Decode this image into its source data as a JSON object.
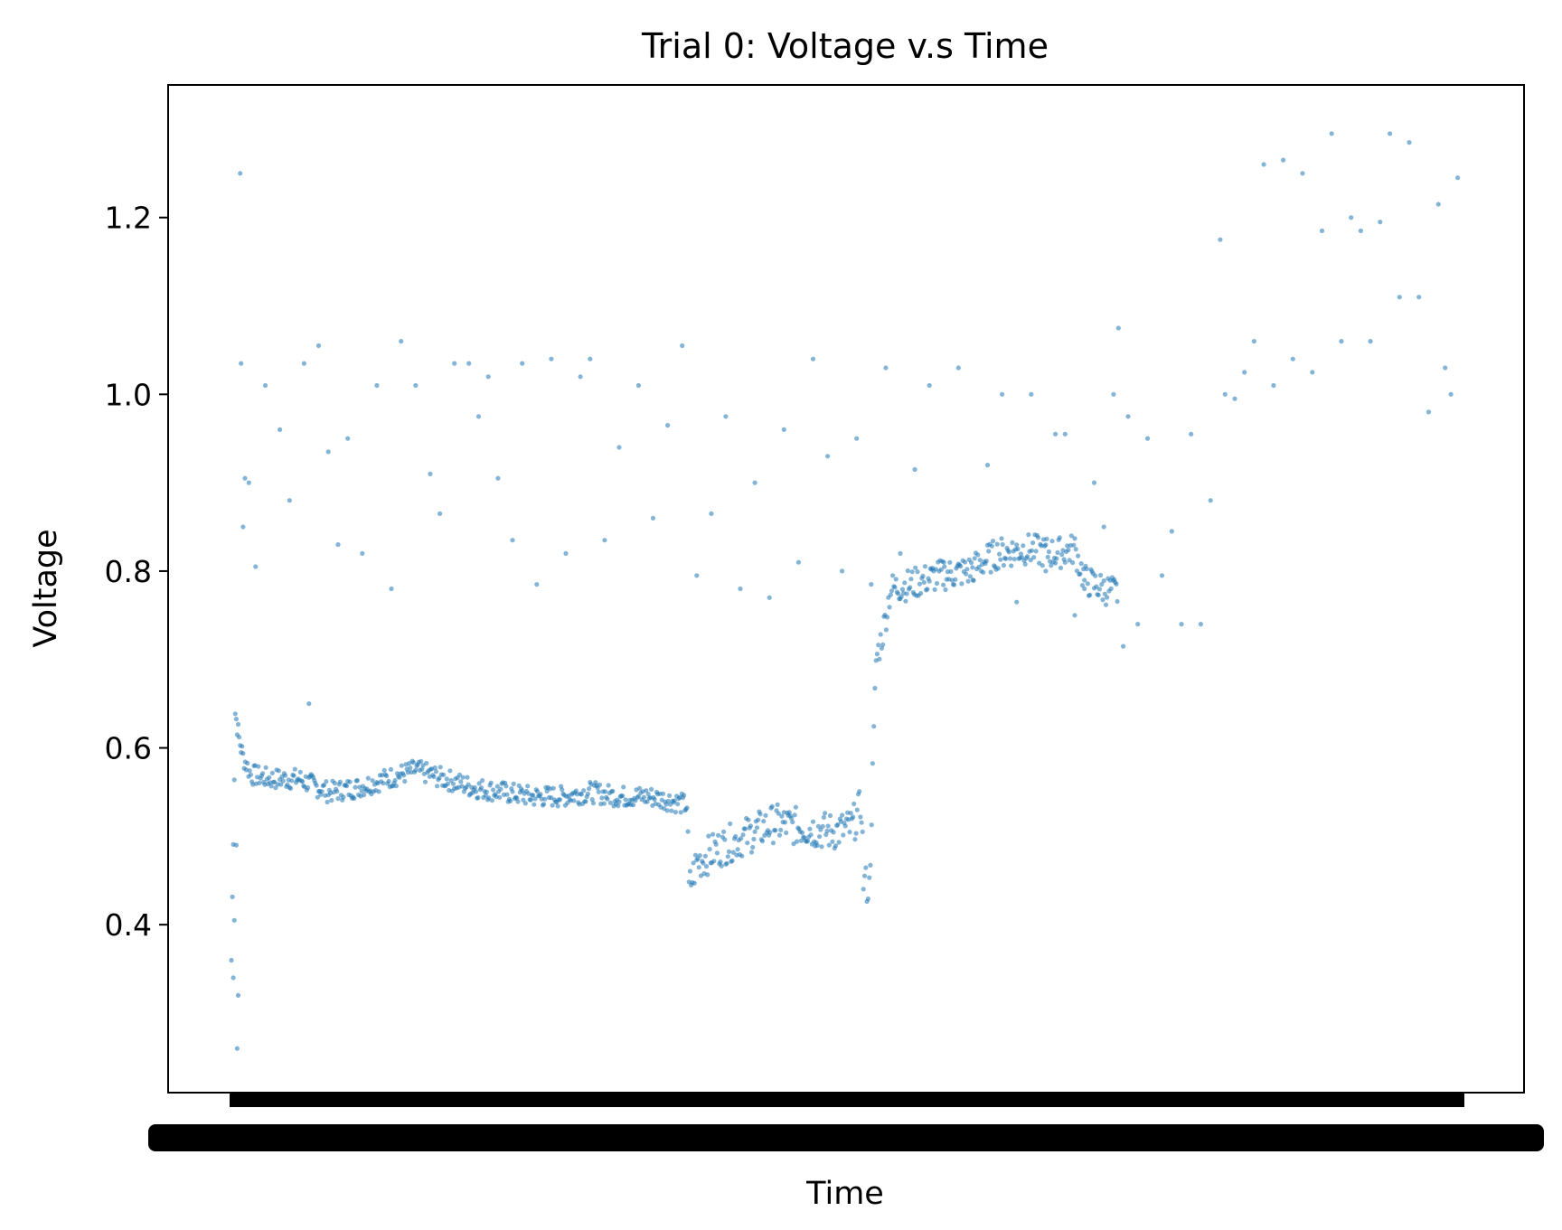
{
  "chart_data": {
    "type": "scatter",
    "title": "Trial 0: Voltage v.s Time",
    "xlabel": "Time",
    "ylabel": "Voltage",
    "ylim": [
      0.21,
      1.35
    ],
    "y_ticks": [
      0.4,
      0.6,
      0.8,
      1.0,
      1.2
    ],
    "y_tick_labels": [
      "0.4",
      "0.6",
      "0.8",
      "1.0",
      "1.2"
    ],
    "x_ticks": "unreadable (overlapping labels)",
    "grid": false,
    "legend": "none",
    "marker_color": "#1f77b4",
    "series": [
      {
        "main_track": [
          [
            0,
            0.36
          ],
          [
            4,
            0.64
          ],
          [
            8,
            0.61
          ],
          [
            12,
            0.59
          ],
          [
            20,
            0.57
          ],
          [
            40,
            0.565
          ],
          [
            70,
            0.565
          ],
          [
            100,
            0.55
          ],
          [
            130,
            0.555
          ],
          [
            160,
            0.565
          ],
          [
            190,
            0.575
          ],
          [
            220,
            0.565
          ],
          [
            250,
            0.555
          ],
          [
            280,
            0.55
          ],
          [
            310,
            0.545
          ],
          [
            340,
            0.545
          ],
          [
            370,
            0.55
          ],
          [
            400,
            0.545
          ],
          [
            430,
            0.545
          ],
          [
            455,
            0.54
          ],
          [
            470,
            0.535
          ],
          [
            472,
            0.44
          ],
          [
            480,
            0.47
          ],
          [
            500,
            0.485
          ],
          [
            530,
            0.5
          ],
          [
            560,
            0.515
          ],
          [
            590,
            0.51
          ],
          [
            620,
            0.505
          ],
          [
            640,
            0.51
          ],
          [
            650,
            0.535
          ],
          [
            652,
            0.45
          ],
          [
            658,
            0.44
          ],
          [
            665,
            0.7
          ],
          [
            672,
            0.73
          ],
          [
            680,
            0.78
          ],
          [
            700,
            0.785
          ],
          [
            730,
            0.795
          ],
          [
            760,
            0.8
          ],
          [
            790,
            0.82
          ],
          [
            820,
            0.825
          ],
          [
            850,
            0.82
          ],
          [
            870,
            0.825
          ],
          [
            880,
            0.79
          ],
          [
            900,
            0.78
          ],
          [
            915,
            0.775
          ]
        ],
        "scattered": [
          [
            2,
            0.34
          ],
          [
            3,
            0.405
          ],
          [
            5,
            0.49
          ],
          [
            6,
            0.26
          ],
          [
            7,
            0.32
          ],
          [
            9,
            1.25
          ],
          [
            10,
            1.035
          ],
          [
            12,
            0.85
          ],
          [
            14,
            0.905
          ],
          [
            18,
            0.9
          ],
          [
            25,
            0.805
          ],
          [
            35,
            1.01
          ],
          [
            50,
            0.96
          ],
          [
            60,
            0.88
          ],
          [
            75,
            1.035
          ],
          [
            80,
            0.65
          ],
          [
            90,
            1.055
          ],
          [
            100,
            0.935
          ],
          [
            110,
            0.83
          ],
          [
            120,
            0.95
          ],
          [
            135,
            0.82
          ],
          [
            150,
            1.01
          ],
          [
            165,
            0.78
          ],
          [
            175,
            1.06
          ],
          [
            190,
            1.01
          ],
          [
            205,
            0.91
          ],
          [
            215,
            0.865
          ],
          [
            230,
            1.035
          ],
          [
            245,
            1.035
          ],
          [
            255,
            0.975
          ],
          [
            265,
            1.02
          ],
          [
            275,
            0.905
          ],
          [
            290,
            0.835
          ],
          [
            300,
            1.035
          ],
          [
            315,
            0.785
          ],
          [
            330,
            1.04
          ],
          [
            345,
            0.82
          ],
          [
            360,
            1.02
          ],
          [
            370,
            1.04
          ],
          [
            385,
            0.835
          ],
          [
            400,
            0.94
          ],
          [
            420,
            1.01
          ],
          [
            435,
            0.86
          ],
          [
            450,
            0.965
          ],
          [
            465,
            1.055
          ],
          [
            480,
            0.795
          ],
          [
            495,
            0.865
          ],
          [
            510,
            0.975
          ],
          [
            525,
            0.78
          ],
          [
            540,
            0.9
          ],
          [
            555,
            0.77
          ],
          [
            570,
            0.96
          ],
          [
            585,
            0.81
          ],
          [
            600,
            1.04
          ],
          [
            615,
            0.93
          ],
          [
            630,
            0.8
          ],
          [
            645,
            0.95
          ],
          [
            660,
            0.785
          ],
          [
            675,
            1.03
          ],
          [
            690,
            0.82
          ],
          [
            705,
            0.915
          ],
          [
            720,
            1.01
          ],
          [
            735,
            0.81
          ],
          [
            750,
            1.03
          ],
          [
            765,
            0.79
          ],
          [
            780,
            0.92
          ],
          [
            795,
            1.0
          ],
          [
            810,
            0.765
          ],
          [
            825,
            1.0
          ],
          [
            840,
            0.8
          ],
          [
            850,
            0.955
          ],
          [
            860,
            0.955
          ],
          [
            870,
            0.75
          ],
          [
            880,
            0.78
          ],
          [
            890,
            0.9
          ],
          [
            900,
            0.85
          ],
          [
            910,
            1.0
          ],
          [
            915,
            1.075
          ],
          [
            920,
            0.715
          ],
          [
            925,
            0.975
          ],
          [
            935,
            0.74
          ],
          [
            945,
            0.95
          ],
          [
            960,
            0.795
          ],
          [
            970,
            0.845
          ],
          [
            980,
            0.74
          ],
          [
            990,
            0.955
          ],
          [
            1000,
            0.74
          ],
          [
            1010,
            0.88
          ],
          [
            1020,
            1.175
          ],
          [
            1025,
            1.0
          ],
          [
            1035,
            0.995
          ],
          [
            1045,
            1.025
          ],
          [
            1055,
            1.06
          ],
          [
            1065,
            1.26
          ],
          [
            1075,
            1.01
          ],
          [
            1085,
            1.265
          ],
          [
            1095,
            1.04
          ],
          [
            1105,
            1.25
          ],
          [
            1115,
            1.025
          ],
          [
            1125,
            1.185
          ],
          [
            1135,
            1.295
          ],
          [
            1145,
            1.06
          ],
          [
            1155,
            1.2
          ],
          [
            1165,
            1.185
          ],
          [
            1175,
            1.06
          ],
          [
            1185,
            1.195
          ],
          [
            1195,
            1.295
          ],
          [
            1205,
            1.11
          ],
          [
            1215,
            1.285
          ],
          [
            1225,
            1.11
          ],
          [
            1235,
            0.98
          ],
          [
            1245,
            1.215
          ],
          [
            1252,
            1.03
          ],
          [
            1258,
            1.0
          ],
          [
            1265,
            1.245
          ]
        ]
      }
    ]
  }
}
